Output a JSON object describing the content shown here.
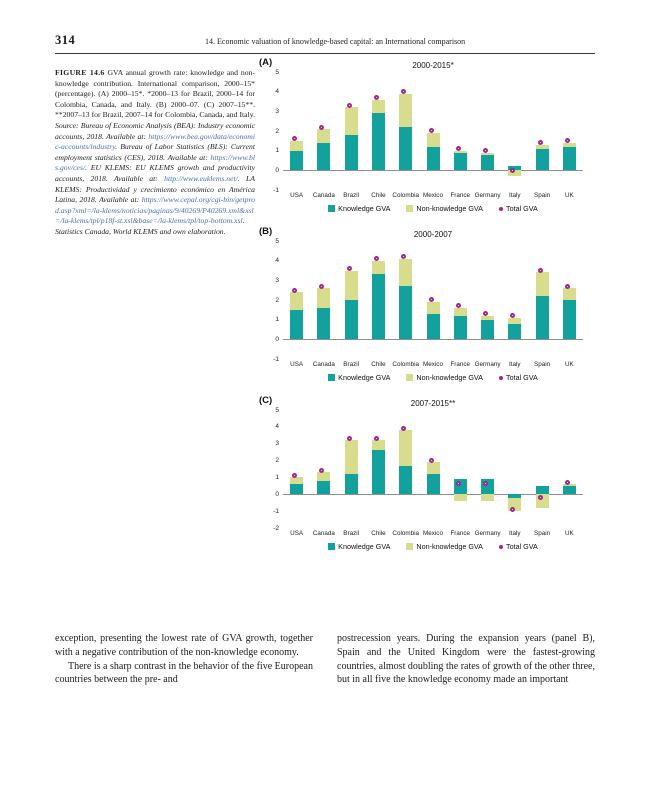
{
  "page": {
    "number": "314",
    "running_header": "14. Economic valuation of knowledge-based capital: an International comparison"
  },
  "figure_caption": {
    "label": "FIGURE 14.6",
    "text_main": "GVA annual growth rate: knowledge and non-knowledge contribution. International comparison, 2000–15* (percentage). (A) 2000–15*. *2000–13 for Brazil, 2000–14 for Colombia, Canada, and Italy. (B) 2000–07. (C) 2007–15**. **2007–13 for Brazil, 2007–14 for Colombia, Canada, and Italy.",
    "source_intro": "Source: Bureau of Economic Analysis (BEA): Industry economic accounts, 2018. Available at: ",
    "link_bea": "https://www.bea.gov/data/economic-accounts/industry",
    "source_bls": ". Bureau of Labor Statistics (BLS): Current employment statistics (CES), 2018. Available at: ",
    "link_bls": "https://www.bls.gov/ces/",
    "source_euklems": ". EU KLEMS: EU KLEMS growth and productivity accounts, 2018. Available at: ",
    "link_euklems": "http://www.euklems.net/",
    "source_laklems": ". LA KLEMS: Productividad y crecimiento económico en América Latina, 2018. Available at: ",
    "link_laklems": "https://www.cepal.org/cgi-bin/getprod.asp?xml=/la-klems/noticias/paginas/9/40269/P40269.xml&xsl=/la-klems/tpl/p18f-st.xsl&base=/la-klems/tpl/top-bottom.xsl",
    "source_end": ". Statistics Canada, World KLEMS and own elaboration."
  },
  "colors": {
    "knowledge": "#12a19c",
    "non_knowledge": "#d8dd8d",
    "total_marker": "#a2268f"
  },
  "chart_data": [
    {
      "type": "bar",
      "stacked": true,
      "panel": "(A)",
      "title": "2000-2015*",
      "categories": [
        "USA",
        "Canada",
        "Brazil",
        "Chile",
        "Colombia",
        "Mexico",
        "France",
        "Germany",
        "Italy",
        "Spain",
        "UK"
      ],
      "series": [
        {
          "name": "Knowledge GVA",
          "color": "#12a19c",
          "values": [
            1.0,
            1.4,
            1.8,
            2.9,
            2.2,
            1.2,
            0.9,
            0.8,
            0.2,
            1.1,
            1.2
          ]
        },
        {
          "name": "Non-knowledge GVA",
          "color": "#d8dd8d",
          "values": [
            0.5,
            0.7,
            1.4,
            0.7,
            1.7,
            0.7,
            0.1,
            0.1,
            -0.3,
            0.2,
            0.2
          ]
        }
      ],
      "total_series": {
        "name": "Total GVA",
        "color": "#a2268f",
        "values": [
          1.5,
          2.1,
          3.2,
          3.6,
          3.9,
          1.9,
          1.0,
          0.9,
          -0.1,
          1.3,
          1.4
        ]
      },
      "ylim": [
        -1,
        5
      ],
      "yticks": [
        5,
        4,
        3,
        2,
        1,
        0,
        -1
      ],
      "grid": false,
      "legend_position": "bottom",
      "ylabel": "",
      "xlabel": ""
    },
    {
      "type": "bar",
      "stacked": true,
      "panel": "(B)",
      "title": "2000-2007",
      "categories": [
        "USA",
        "Canada",
        "Brazil",
        "Chile",
        "Colombia",
        "Mexico",
        "France",
        "Germany",
        "Italy",
        "Spain",
        "UK"
      ],
      "series": [
        {
          "name": "Knowledge GVA",
          "color": "#12a19c",
          "values": [
            1.5,
            1.6,
            2.0,
            3.3,
            2.7,
            1.3,
            1.2,
            1.0,
            0.8,
            2.2,
            2.0
          ]
        },
        {
          "name": "Non-knowledge GVA",
          "color": "#d8dd8d",
          "values": [
            0.9,
            1.0,
            1.5,
            0.7,
            1.4,
            0.6,
            0.4,
            0.2,
            0.3,
            1.2,
            0.6
          ]
        }
      ],
      "total_series": {
        "name": "Total GVA",
        "color": "#a2268f",
        "values": [
          2.4,
          2.6,
          3.5,
          4.0,
          4.1,
          1.9,
          1.6,
          1.2,
          1.1,
          3.4,
          2.6
        ]
      },
      "ylim": [
        -1,
        5
      ],
      "yticks": [
        5,
        4,
        3,
        2,
        1,
        0,
        -1
      ],
      "grid": false,
      "legend_position": "bottom",
      "ylabel": "",
      "xlabel": ""
    },
    {
      "type": "bar",
      "stacked": true,
      "panel": "(C)",
      "title": "2007-2015**",
      "categories": [
        "USA",
        "Canada",
        "Brazil",
        "Chile",
        "Colombia",
        "Mexico",
        "France",
        "Germany",
        "Italy",
        "Spain",
        "UK"
      ],
      "series": [
        {
          "name": "Knowledge GVA",
          "color": "#12a19c",
          "values": [
            0.6,
            0.8,
            1.2,
            2.6,
            1.7,
            1.2,
            0.9,
            0.9,
            -0.2,
            0.5,
            0.5
          ]
        },
        {
          "name": "Non-knowledge GVA",
          "color": "#d8dd8d",
          "values": [
            0.4,
            0.5,
            2.0,
            0.6,
            2.1,
            0.7,
            -0.4,
            -0.4,
            -0.8,
            -0.8,
            0.1
          ]
        }
      ],
      "total_series": {
        "name": "Total GVA",
        "color": "#a2268f",
        "values": [
          1.0,
          1.3,
          3.2,
          3.2,
          3.8,
          1.9,
          0.5,
          0.5,
          -1.0,
          -0.3,
          0.6
        ]
      },
      "ylim": [
        -2,
        5
      ],
      "yticks": [
        5,
        4,
        3,
        2,
        1,
        0,
        -1,
        -2
      ],
      "grid": false,
      "legend_position": "bottom",
      "ylabel": "",
      "xlabel": ""
    }
  ],
  "body_text": {
    "col_left_p1": "exception, presenting the lowest rate of GVA growth, together with a negative contribution of the non-knowledge economy.",
    "col_left_p2": "There is a sharp contrast in the behavior of the five European countries between the pre- and",
    "col_right_p1": "postrecession years. During the expansion years (panel B), Spain and the United Kingdom were the fastest-growing countries, almost doubling the rates of growth of the other three, but in all five the knowledge economy made an important"
  }
}
